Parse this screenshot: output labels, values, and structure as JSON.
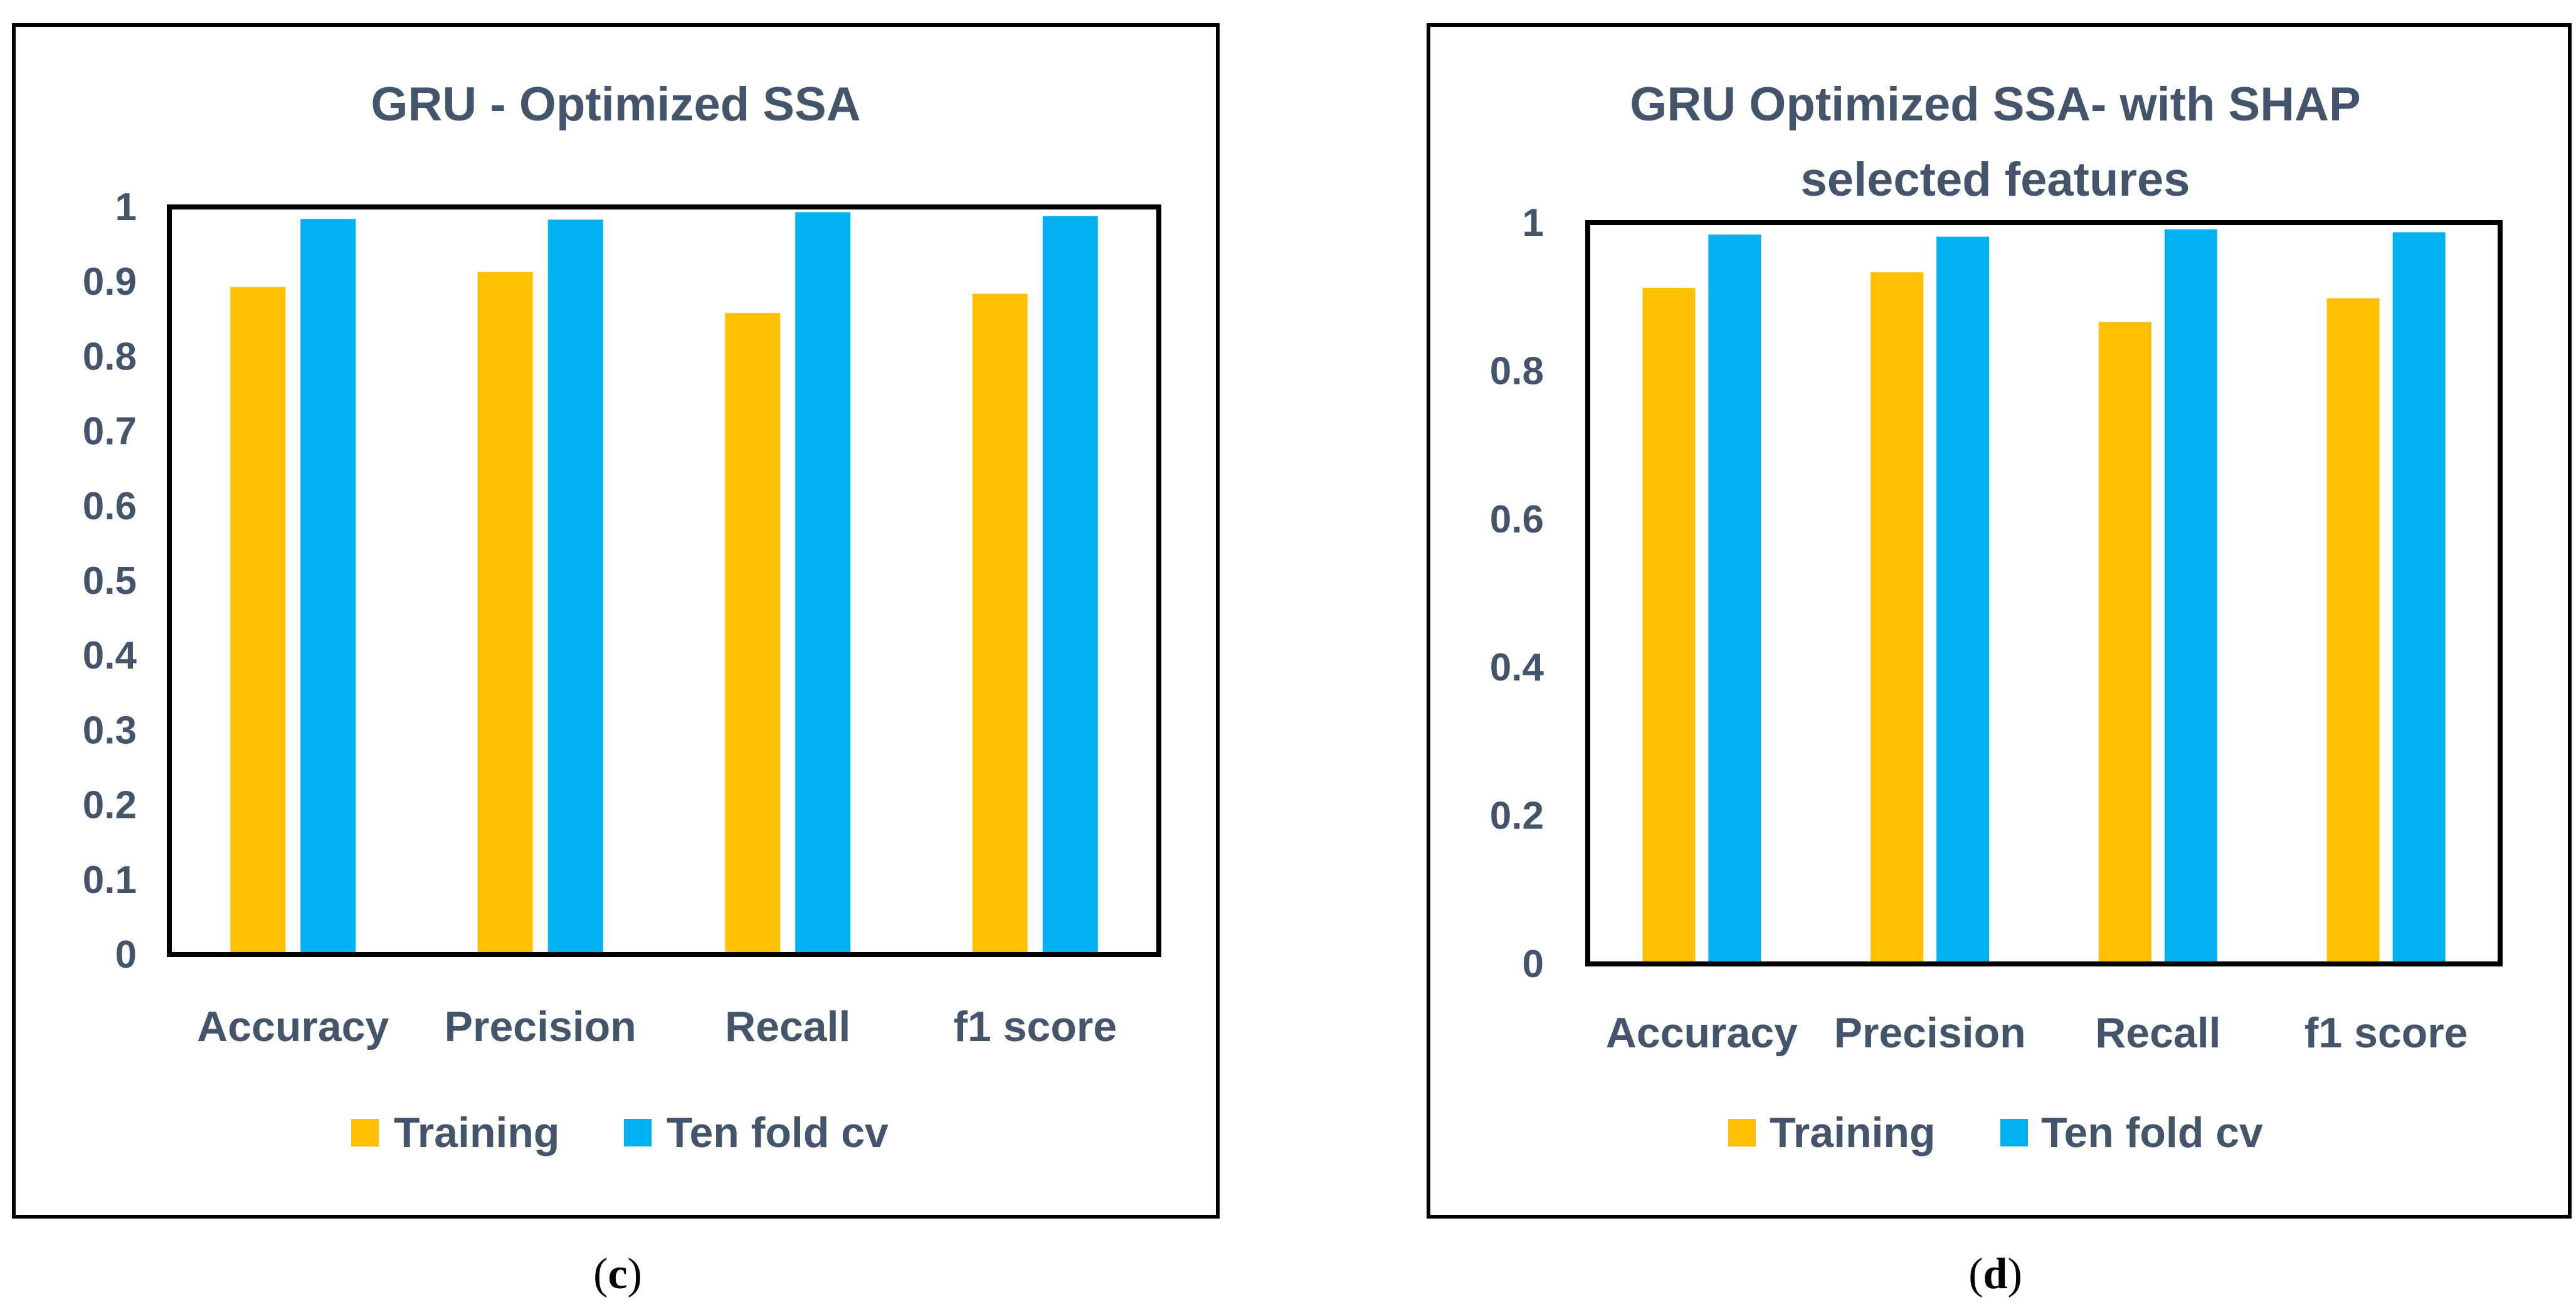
{
  "colors": {
    "training": "#ffc000",
    "tenfold": "#00b0f0",
    "text": "#44546a",
    "frame": "#000000"
  },
  "chart_data": [
    {
      "type": "bar",
      "panel_label": "c",
      "title": "GRU - Optimized SSA",
      "title_lines": [
        "GRU - Optimized SSA"
      ],
      "categories": [
        "Accuracy",
        "Precision",
        "Recall",
        "f1 score"
      ],
      "series": [
        {
          "name": "Training",
          "values": [
            0.893,
            0.913,
            0.858,
            0.884
          ]
        },
        {
          "name": "Ten fold cv",
          "values": [
            0.984,
            0.983,
            0.993,
            0.988
          ]
        }
      ],
      "ylim": [
        0,
        1
      ],
      "yticks": [
        0,
        0.1,
        0.2,
        0.3,
        0.4,
        0.5,
        0.6,
        0.7,
        0.8,
        0.9,
        1
      ],
      "ytick_labels": [
        "0",
        "0.1",
        "0.2",
        "0.3",
        "0.4",
        "0.5",
        "0.6",
        "0.7",
        "0.8",
        "0.9",
        "1"
      ],
      "xlabel": "",
      "ylabel": "",
      "legend": [
        "Training",
        "Ten fold cv"
      ],
      "legend_position": "bottom",
      "grid": false
    },
    {
      "type": "bar",
      "panel_label": "d",
      "title": "GRU Optimized SSA- with SHAP selected features",
      "title_lines": [
        "GRU Optimized SSA- with SHAP",
        "selected features"
      ],
      "categories": [
        "Accuracy",
        "Precision",
        "Recall",
        "f1 score"
      ],
      "series": [
        {
          "name": "Training",
          "values": [
            0.912,
            0.933,
            0.866,
            0.898
          ]
        },
        {
          "name": "Ten fold cv",
          "values": [
            0.984,
            0.981,
            0.991,
            0.987
          ]
        }
      ],
      "ylim": [
        0,
        1
      ],
      "yticks": [
        0,
        0.2,
        0.4,
        0.6,
        0.8,
        1
      ],
      "ytick_labels": [
        "0",
        "0.2",
        "0.4",
        "0.6",
        "0.8",
        "1"
      ],
      "xlabel": "",
      "ylabel": "",
      "legend": [
        "Training",
        "Ten fold cv"
      ],
      "legend_position": "bottom",
      "grid": false
    }
  ]
}
